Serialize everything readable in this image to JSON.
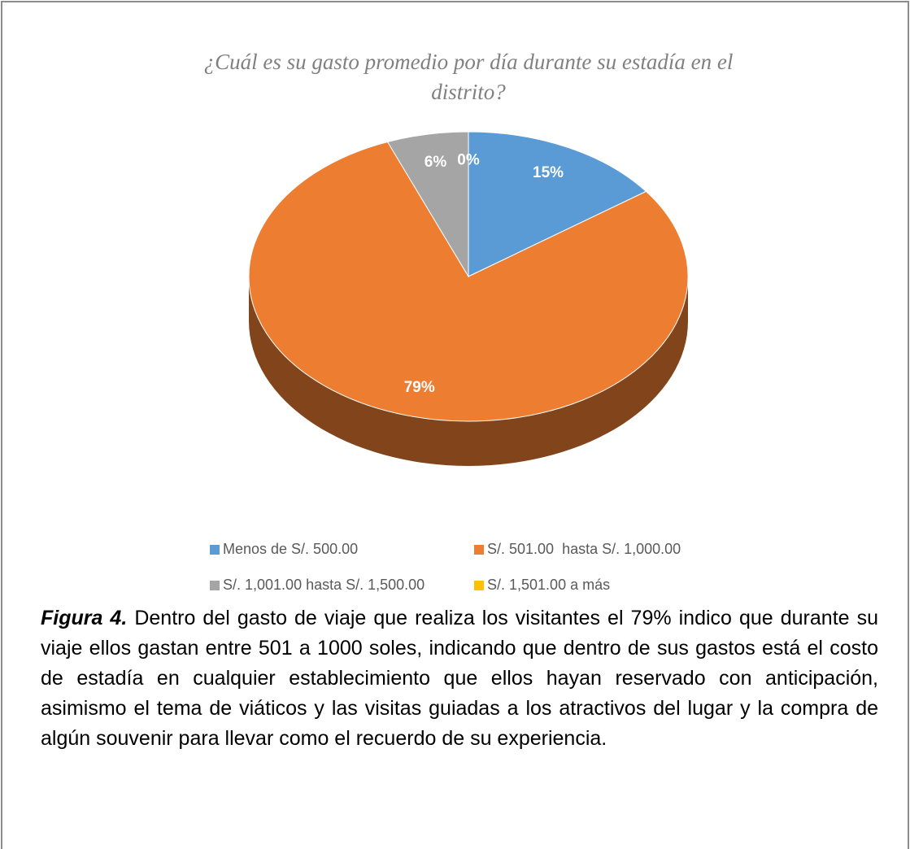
{
  "chart_data": {
    "type": "pie",
    "title": "¿Cuál es su gasto promedio por día durante su estadía en el distrito?",
    "title_lines": [
      "¿Cuál es su gasto promedio por día durante su estadía en el",
      "distrito?"
    ],
    "categories": [
      "Menos de S/. 500.00",
      "S/. 501.00  hasta S/. 1,000.00",
      "S/. 1,001.00 hasta S/. 1,500.00",
      "S/. 1,501.00 a más"
    ],
    "values": [
      15,
      79,
      6,
      0
    ],
    "value_labels": [
      "15%",
      "79%",
      "6%",
      "0%"
    ],
    "colors": [
      "#5b9bd5",
      "#ed7d31",
      "#a5a5a5",
      "#ffc000"
    ]
  },
  "caption": {
    "label": "Figura 4.",
    "text": "Dentro del gasto de viaje que realiza los visitantes el 79% indico que durante su viaje ellos gastan entre 501 a 1000 soles, indicando que dentro de sus gastos está el costo de estadía en cualquier establecimiento que ellos hayan reservado con anticipación, asimismo el tema de viáticos y las visitas guiadas a los atractivos del lugar y la compra de algún souvenir para llevar como el recuerdo de su experiencia."
  }
}
